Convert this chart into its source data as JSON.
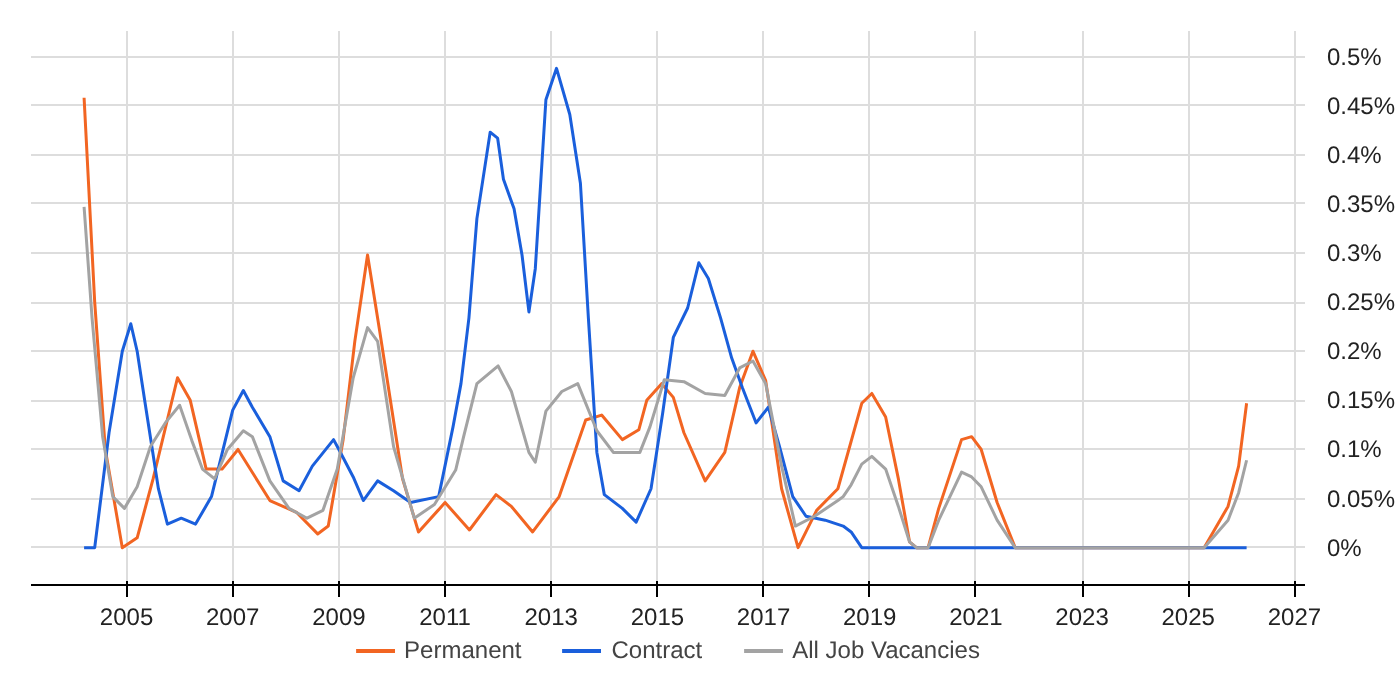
{
  "chart_data": {
    "type": "line",
    "xlim": [
      2003.2,
      2027.2
    ],
    "xticks": [
      2005,
      2007,
      2009,
      2011,
      2013,
      2015,
      2017,
      2019,
      2021,
      2023,
      2025,
      2027
    ],
    "ylim": [
      -0.038,
      0.526
    ],
    "yticks": [
      {
        "value": 0,
        "label": "0%"
      },
      {
        "value": 0.05,
        "label": "0.05%"
      },
      {
        "value": 0.1,
        "label": "0.1%"
      },
      {
        "value": 0.15,
        "label": "0.15%"
      },
      {
        "value": 0.2,
        "label": "0.2%"
      },
      {
        "value": 0.25,
        "label": "0.25%"
      },
      {
        "value": 0.3,
        "label": "0.3%"
      },
      {
        "value": 0.35,
        "label": "0.35%"
      },
      {
        "value": 0.4,
        "label": "0.4%"
      },
      {
        "value": 0.45,
        "label": "0.45%"
      },
      {
        "value": 0.5,
        "label": "0.5%"
      }
    ],
    "grid": true,
    "legend": "bottom",
    "series": [
      {
        "name": "Permanent",
        "color": "#f26522",
        "x": [
          2004.2,
          2004.4,
          2004.6,
          2004.92,
          2005.2,
          2005.5,
          2005.96,
          2006.2,
          2006.5,
          2006.8,
          2007.1,
          2007.7,
          2008.2,
          2008.6,
          2008.8,
          2009.08,
          2009.3,
          2009.54,
          2009.77,
          2010.2,
          2010.5,
          2010.9,
          2011.0,
          2011.46,
          2011.96,
          2012.25,
          2012.65,
          2013.15,
          2013.65,
          2013.95,
          2014.34,
          2014.65,
          2014.8,
          2015.08,
          2015.3,
          2015.5,
          2015.9,
          2016.27,
          2016.55,
          2016.8,
          2017.04,
          2017.34,
          2017.65,
          2018.0,
          2018.4,
          2018.85,
          2019.04,
          2019.3,
          2019.54,
          2019.75,
          2019.88,
          2020.1,
          2020.3,
          2020.73,
          2020.92,
          2021.1,
          2021.4,
          2021.74,
          2025.3,
          2025.75,
          2025.95,
          2026.1
        ],
        "values": [
          0.458,
          0.25,
          0.1,
          0.0,
          0.01,
          0.07,
          0.173,
          0.15,
          0.08,
          0.08,
          0.1,
          0.048,
          0.036,
          0.014,
          0.022,
          0.11,
          0.21,
          0.298,
          0.22,
          0.07,
          0.016,
          0.04,
          0.046,
          0.018,
          0.054,
          0.042,
          0.016,
          0.052,
          0.13,
          0.135,
          0.11,
          0.12,
          0.15,
          0.167,
          0.153,
          0.117,
          0.068,
          0.097,
          0.163,
          0.2,
          0.17,
          0.06,
          0.0,
          0.038,
          0.06,
          0.147,
          0.157,
          0.133,
          0.07,
          0.006,
          0.0,
          0.0,
          0.04,
          0.11,
          0.113,
          0.1,
          0.046,
          0.0,
          0.0,
          0.042,
          0.083,
          0.147
        ]
      },
      {
        "name": "Contract",
        "color": "#1a5fdc",
        "x": [
          2004.2,
          2004.4,
          2004.67,
          2004.92,
          2005.08,
          2005.2,
          2005.35,
          2005.6,
          2005.77,
          2006.03,
          2006.3,
          2006.6,
          2007.0,
          2007.2,
          2007.37,
          2007.7,
          2007.95,
          2008.25,
          2008.5,
          2008.9,
          2009.0,
          2009.27,
          2009.46,
          2009.73,
          2010.03,
          2010.35,
          2010.88,
          2011.15,
          2011.3,
          2011.45,
          2011.6,
          2011.85,
          2011.99,
          2012.1,
          2012.3,
          2012.45,
          2012.58,
          2012.7,
          2012.9,
          2013.1,
          2013.35,
          2013.55,
          2013.7,
          2013.86,
          2014.0,
          2014.34,
          2014.6,
          2014.88,
          2015.1,
          2015.3,
          2015.57,
          2015.78,
          2015.96,
          2016.19,
          2016.4,
          2016.6,
          2016.86,
          2017.09,
          2017.3,
          2017.55,
          2017.8,
          2018.16,
          2018.5,
          2018.65,
          2018.85,
          2026.1
        ],
        "values": [
          0.0,
          0.0,
          0.117,
          0.2,
          0.228,
          0.2,
          0.147,
          0.06,
          0.024,
          0.03,
          0.024,
          0.052,
          0.14,
          0.16,
          0.143,
          0.113,
          0.068,
          0.058,
          0.083,
          0.11,
          0.1,
          0.072,
          0.048,
          0.068,
          0.058,
          0.046,
          0.052,
          0.123,
          0.167,
          0.234,
          0.335,
          0.423,
          0.417,
          0.375,
          0.345,
          0.298,
          0.24,
          0.284,
          0.456,
          0.488,
          0.441,
          0.371,
          0.234,
          0.097,
          0.054,
          0.04,
          0.026,
          0.06,
          0.137,
          0.214,
          0.244,
          0.29,
          0.274,
          0.234,
          0.193,
          0.163,
          0.127,
          0.143,
          0.103,
          0.052,
          0.032,
          0.028,
          0.022,
          0.016,
          0.0,
          0.0
        ]
      },
      {
        "name": "All Job Vacancies",
        "color": "#a3a3a3",
        "x": [
          2004.2,
          2004.35,
          2004.55,
          2004.74,
          2004.96,
          2005.2,
          2005.45,
          2005.73,
          2006.0,
          2006.23,
          2006.43,
          2006.66,
          2006.9,
          2007.2,
          2007.37,
          2007.7,
          2008.06,
          2008.4,
          2008.7,
          2008.97,
          2009.27,
          2009.54,
          2009.73,
          2010.03,
          2010.42,
          2010.8,
          2011.2,
          2011.35,
          2011.6,
          2012.0,
          2012.25,
          2012.58,
          2012.7,
          2012.9,
          2013.2,
          2013.5,
          2013.86,
          2014.17,
          2014.67,
          2014.86,
          2015.13,
          2015.5,
          2015.9,
          2016.27,
          2016.55,
          2016.8,
          2017.04,
          2017.34,
          2017.6,
          2017.96,
          2018.4,
          2018.5,
          2018.65,
          2018.85,
          2019.04,
          2019.3,
          2019.54,
          2019.75,
          2019.88,
          2020.1,
          2020.3,
          2020.73,
          2020.92,
          2021.1,
          2021.4,
          2021.74,
          2025.3,
          2025.75,
          2025.95,
          2026.1
        ],
        "values": [
          0.347,
          0.234,
          0.113,
          0.052,
          0.04,
          0.062,
          0.103,
          0.127,
          0.145,
          0.109,
          0.08,
          0.07,
          0.1,
          0.119,
          0.113,
          0.068,
          0.04,
          0.03,
          0.038,
          0.08,
          0.173,
          0.224,
          0.21,
          0.103,
          0.03,
          0.044,
          0.079,
          0.113,
          0.167,
          0.185,
          0.159,
          0.097,
          0.087,
          0.139,
          0.159,
          0.167,
          0.119,
          0.097,
          0.097,
          0.123,
          0.171,
          0.169,
          0.157,
          0.155,
          0.183,
          0.19,
          0.167,
          0.083,
          0.022,
          0.032,
          0.048,
          0.052,
          0.064,
          0.085,
          0.093,
          0.08,
          0.042,
          0.006,
          0.0,
          0.0,
          0.028,
          0.077,
          0.072,
          0.062,
          0.028,
          0.0,
          0.0,
          0.028,
          0.056,
          0.089
        ]
      }
    ]
  }
}
